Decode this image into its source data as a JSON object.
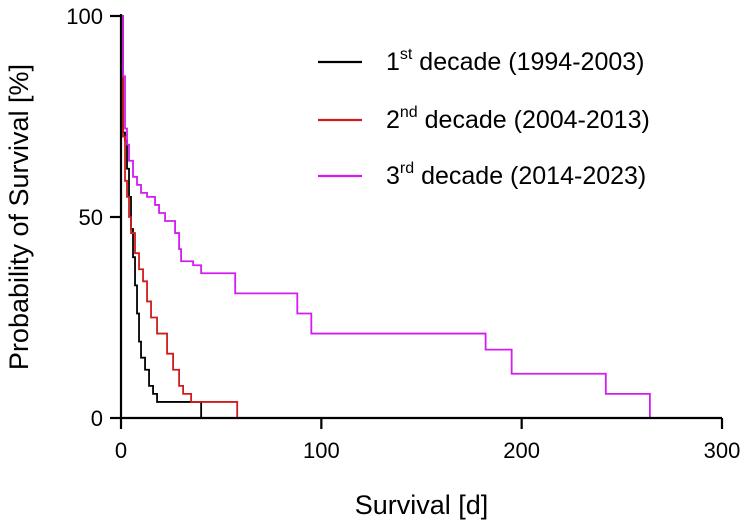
{
  "chart_data": {
    "type": "line",
    "step": true,
    "xlabel": "Survival [d]",
    "ylabel": "Probability of Survival [%]",
    "xlim": [
      0,
      300
    ],
    "ylim": [
      0,
      100
    ],
    "xticks": [
      0,
      100,
      200,
      300
    ],
    "xtick_labels": [
      "0",
      "100",
      "200",
      "300"
    ],
    "yticks": [
      0,
      50,
      100
    ],
    "ytick_labels": [
      "0",
      "50",
      "100"
    ],
    "grid": false,
    "legend_position": "top-right",
    "series": [
      {
        "name_main": "1",
        "name_sup": "st",
        "name_rest": " decade (1994-2003)",
        "color": "#000000",
        "x": [
          0,
          1,
          2,
          3,
          4,
          5,
          6,
          7,
          8,
          9,
          10,
          12,
          14,
          16,
          18,
          20,
          40
        ],
        "y": [
          100,
          71,
          69,
          62,
          55,
          47,
          40,
          33,
          26,
          19,
          15,
          12,
          8,
          6,
          4,
          4,
          0
        ]
      },
      {
        "name_main": "2",
        "name_sup": "nd",
        "name_rest": " decade (2004-2013)",
        "color": "#d01c1c",
        "x": [
          0,
          1,
          2,
          3,
          4,
          5,
          7,
          9,
          11,
          13,
          15,
          18,
          23,
          26,
          29,
          31,
          35,
          58
        ],
        "y": [
          100,
          70,
          59,
          55,
          50,
          46,
          41,
          37,
          34,
          29,
          25,
          21,
          16,
          12,
          8,
          6,
          4,
          0
        ]
      },
      {
        "name_main": "3",
        "name_sup": "rd",
        "name_rest": " decade (2014-2023)",
        "color": "#d21cf0",
        "x": [
          0,
          1,
          2,
          3,
          4,
          6,
          8,
          10,
          13,
          17,
          19,
          22,
          27,
          29,
          30,
          36,
          40,
          57,
          84,
          88,
          95,
          182,
          195,
          242,
          264
        ],
        "y": [
          100,
          85,
          72,
          68,
          64,
          60,
          58,
          56,
          55,
          53,
          51,
          49,
          46,
          42,
          39,
          38,
          36,
          31,
          31,
          26,
          21,
          17,
          11,
          6,
          0
        ]
      }
    ]
  }
}
